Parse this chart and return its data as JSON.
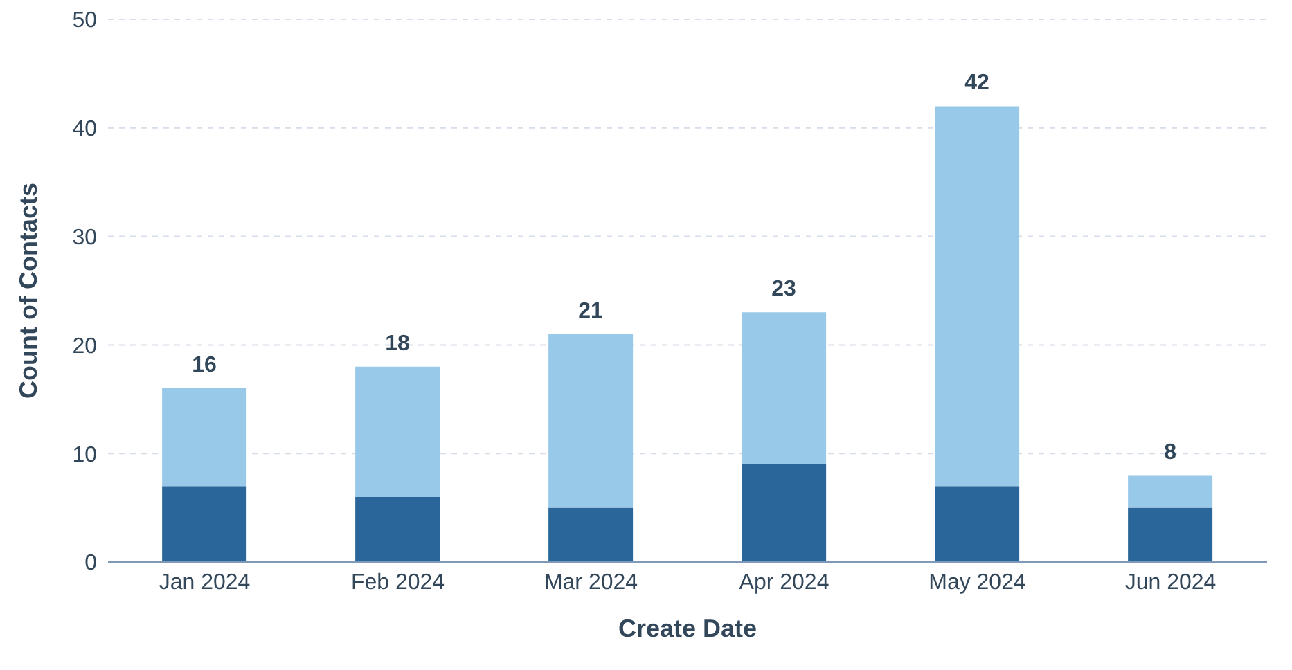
{
  "chart_data": {
    "type": "bar",
    "stacked": true,
    "xlabel": "Create Date",
    "ylabel": "Count of Contacts",
    "categories": [
      "Jan 2024",
      "Feb 2024",
      "Mar 2024",
      "Apr 2024",
      "May 2024",
      "Jun 2024"
    ],
    "series": [
      {
        "color": "#2a6699",
        "values": [
          7,
          6,
          5,
          9,
          7,
          5
        ]
      },
      {
        "color": "#99c9e9",
        "values": [
          9,
          12,
          16,
          14,
          35,
          3
        ]
      }
    ],
    "totals": [
      "16",
      "18",
      "21",
      "23",
      "42",
      "8"
    ],
    "ylim": [
      0,
      50
    ],
    "yticks": [
      0,
      10,
      20,
      30,
      40,
      50
    ],
    "grid": "y"
  }
}
